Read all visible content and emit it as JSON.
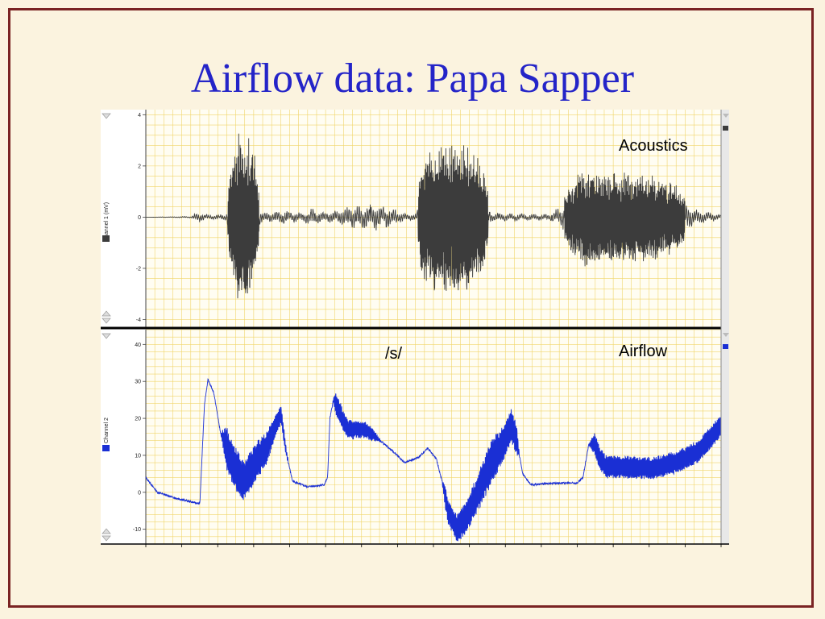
{
  "slide": {
    "title": "Airflow data: Papa Sapper"
  },
  "colors": {
    "background": "#fbf3df",
    "frame": "#7a2323",
    "title": "#2424c8",
    "grid": "#f0d56a",
    "acoustics_trace": "#3c3c3c",
    "airflow_trace": "#1a2fd4"
  },
  "chart_data": [
    {
      "type": "line",
      "channel_label": "Channel 1 (mV)",
      "annotation": "Acoustics",
      "yticks": [
        "4",
        "2",
        "0",
        "-2",
        "-4"
      ],
      "ylim": [
        -4.3,
        4.2
      ],
      "x_extent": [
        0,
        100
      ],
      "grid": true,
      "envelope_points": [
        [
          0,
          0.0
        ],
        [
          8,
          0.05
        ],
        [
          9,
          0.4
        ],
        [
          11,
          0.15
        ],
        [
          14,
          0.2
        ],
        [
          14.5,
          1.5
        ],
        [
          16,
          3.0
        ],
        [
          18,
          2.9
        ],
        [
          19,
          2.0
        ],
        [
          20,
          0.4
        ],
        [
          22,
          0.35
        ],
        [
          24,
          0.5
        ],
        [
          27,
          0.3
        ],
        [
          29,
          0.6
        ],
        [
          31,
          0.3
        ],
        [
          34,
          0.5
        ],
        [
          36,
          0.8
        ],
        [
          39,
          0.9
        ],
        [
          42,
          0.8
        ],
        [
          44,
          0.4
        ],
        [
          46,
          0.2
        ],
        [
          47,
          0.3
        ],
        [
          48,
          2.2
        ],
        [
          52,
          2.7
        ],
        [
          56,
          2.6
        ],
        [
          59,
          1.6
        ],
        [
          60,
          0.3
        ],
        [
          65,
          0.25
        ],
        [
          70,
          0.2
        ],
        [
          74,
          1.2
        ],
        [
          76,
          1.7
        ],
        [
          80,
          1.6
        ],
        [
          88,
          1.5
        ],
        [
          92,
          1.2
        ],
        [
          96,
          0.5
        ],
        [
          100,
          0.2
        ]
      ]
    },
    {
      "type": "line",
      "channel_label": "Channel 2",
      "annotation": "Airflow",
      "segment_label": "/s/",
      "yticks": [
        "40",
        "30",
        "20",
        "10",
        "0",
        "-10"
      ],
      "ylim": [
        -14,
        44
      ],
      "x_extent": [
        0,
        100
      ],
      "grid": true,
      "baseline_points": [
        [
          0,
          4
        ],
        [
          2,
          0
        ],
        [
          5,
          -1.5
        ],
        [
          9,
          -3
        ],
        [
          9.4,
          -3
        ],
        [
          10.2,
          24
        ],
        [
          10.8,
          30.5
        ],
        [
          11.8,
          27
        ],
        [
          13,
          16
        ],
        [
          15,
          8
        ],
        [
          17,
          3
        ],
        [
          19,
          8
        ],
        [
          21,
          12
        ],
        [
          22.5,
          18
        ],
        [
          23.5,
          21
        ],
        [
          24.5,
          10
        ],
        [
          25.5,
          3
        ],
        [
          28,
          1.5
        ],
        [
          31,
          2
        ],
        [
          31.6,
          4
        ],
        [
          32,
          20
        ],
        [
          32.6,
          25
        ],
        [
          33.6,
          22
        ],
        [
          35,
          17
        ],
        [
          38,
          17
        ],
        [
          40,
          15
        ],
        [
          43,
          11
        ],
        [
          45,
          8
        ],
        [
          47.5,
          9.5
        ],
        [
          49,
          12
        ],
        [
          50.5,
          9
        ],
        [
          51.5,
          3
        ],
        [
          52.5,
          -5
        ],
        [
          54,
          -10
        ],
        [
          56,
          -6
        ],
        [
          58,
          1
        ],
        [
          60,
          8
        ],
        [
          62,
          13
        ],
        [
          63.5,
          18
        ],
        [
          64.5,
          14
        ],
        [
          65.5,
          5
        ],
        [
          67,
          2
        ],
        [
          71,
          2.5
        ],
        [
          75,
          2.5
        ],
        [
          76,
          4
        ],
        [
          77,
          13
        ],
        [
          78,
          13
        ],
        [
          79,
          9
        ],
        [
          80,
          7
        ],
        [
          88,
          6.5
        ],
        [
          92,
          8
        ],
        [
          96,
          11
        ],
        [
          100,
          18
        ]
      ],
      "oscillation_points": [
        [
          0,
          0
        ],
        [
          13,
          0
        ],
        [
          14,
          6
        ],
        [
          20,
          5
        ],
        [
          24,
          2
        ],
        [
          25,
          0
        ],
        [
          32.5,
          0
        ],
        [
          33,
          3
        ],
        [
          39,
          2
        ],
        [
          41,
          0
        ],
        [
          51.5,
          0
        ],
        [
          52,
          3
        ],
        [
          60,
          6
        ],
        [
          64.5,
          4
        ],
        [
          65,
          0
        ],
        [
          77,
          0
        ],
        [
          78,
          3
        ],
        [
          100,
          3
        ]
      ]
    }
  ]
}
